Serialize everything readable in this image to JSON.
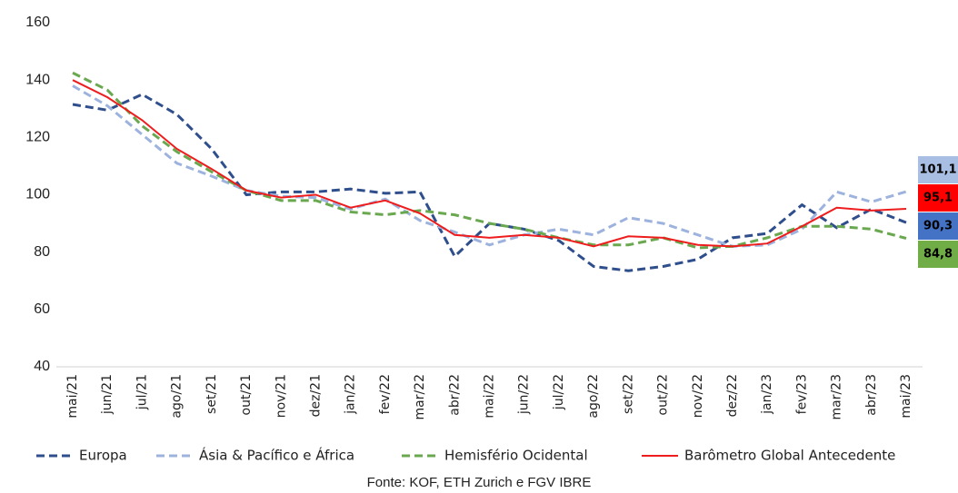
{
  "chart_data": {
    "type": "line",
    "source": "Fonte: KOF, ETH Zurich e FGV IBRE",
    "categories": [
      "mai/21",
      "jun/21",
      "jul/21",
      "ago/21",
      "set/21",
      "out/21",
      "nov/21",
      "dez/21",
      "jan/22",
      "fev/22",
      "mar/22",
      "abr/22",
      "mai/22",
      "jun/22",
      "jul/22",
      "ago/22",
      "set/22",
      "out/22",
      "nov/22",
      "dez/22",
      "jan/23",
      "fev/23",
      "mar/23",
      "abr/23",
      "mai/23"
    ],
    "ylim": [
      40,
      160
    ],
    "yticks": [
      40,
      60,
      80,
      100,
      120,
      140,
      160
    ],
    "grid": false,
    "series": [
      {
        "name": "Europa",
        "color": "#2f4e8c",
        "dash": true,
        "label_bg": "#4472c4",
        "values": [
          131.5,
          129.5,
          135,
          128,
          116,
          100,
          101,
          101,
          102,
          100.5,
          101,
          78.5,
          90,
          88,
          84,
          75,
          73.5,
          75,
          77.5,
          85,
          86.5,
          96.5,
          88.5,
          95,
          90.3
        ],
        "value_labels": [
          null,
          null,
          null,
          null,
          null,
          null,
          null,
          null,
          null,
          null,
          null,
          null,
          null,
          null,
          null,
          null,
          null,
          null,
          null,
          null,
          null,
          null,
          null,
          null,
          "90,3"
        ]
      },
      {
        "name": "Ásia & Pacífico e África",
        "color": "#9db3de",
        "dash": true,
        "label_bg": "#a9bee3",
        "values": [
          138,
          131,
          121,
          111,
          106.5,
          101.5,
          99.5,
          99,
          95,
          98.5,
          91,
          87,
          82.5,
          86,
          88,
          86,
          92,
          90,
          86,
          82,
          82.5,
          88,
          101,
          97.5,
          101.1
        ],
        "value_labels": [
          null,
          null,
          null,
          null,
          null,
          null,
          null,
          null,
          null,
          null,
          null,
          null,
          null,
          null,
          null,
          null,
          null,
          null,
          null,
          null,
          null,
          null,
          null,
          null,
          "101,1"
        ]
      },
      {
        "name": "Hemisfério Ocidental",
        "color": "#6aa84f",
        "dash": true,
        "label_bg": "#70ad47",
        "values": [
          142.5,
          136.5,
          124,
          115,
          108,
          101.5,
          98,
          98,
          94,
          93,
          94.5,
          93,
          90,
          88,
          85,
          82.5,
          82.5,
          85,
          81.5,
          82,
          85,
          89,
          89,
          88,
          84.8
        ],
        "value_labels": [
          null,
          null,
          null,
          null,
          null,
          null,
          null,
          null,
          null,
          null,
          null,
          null,
          null,
          null,
          null,
          null,
          null,
          null,
          null,
          null,
          null,
          null,
          null,
          null,
          "84,8"
        ]
      },
      {
        "name": "Barômetro Global Antecedente",
        "color": "#ee1c1c",
        "dash": false,
        "label_bg": "#ff0000",
        "values": [
          140,
          134,
          126,
          116,
          109,
          101.5,
          99,
          100,
          95.5,
          98,
          93.5,
          86,
          85,
          86,
          85,
          82,
          85.5,
          85,
          82.5,
          82,
          83,
          89,
          95.5,
          94.5,
          95.1
        ],
        "value_labels": [
          null,
          null,
          null,
          null,
          null,
          null,
          null,
          null,
          null,
          null,
          null,
          null,
          null,
          null,
          null,
          null,
          null,
          null,
          null,
          null,
          null,
          null,
          null,
          null,
          "95,1"
        ]
      }
    ]
  }
}
